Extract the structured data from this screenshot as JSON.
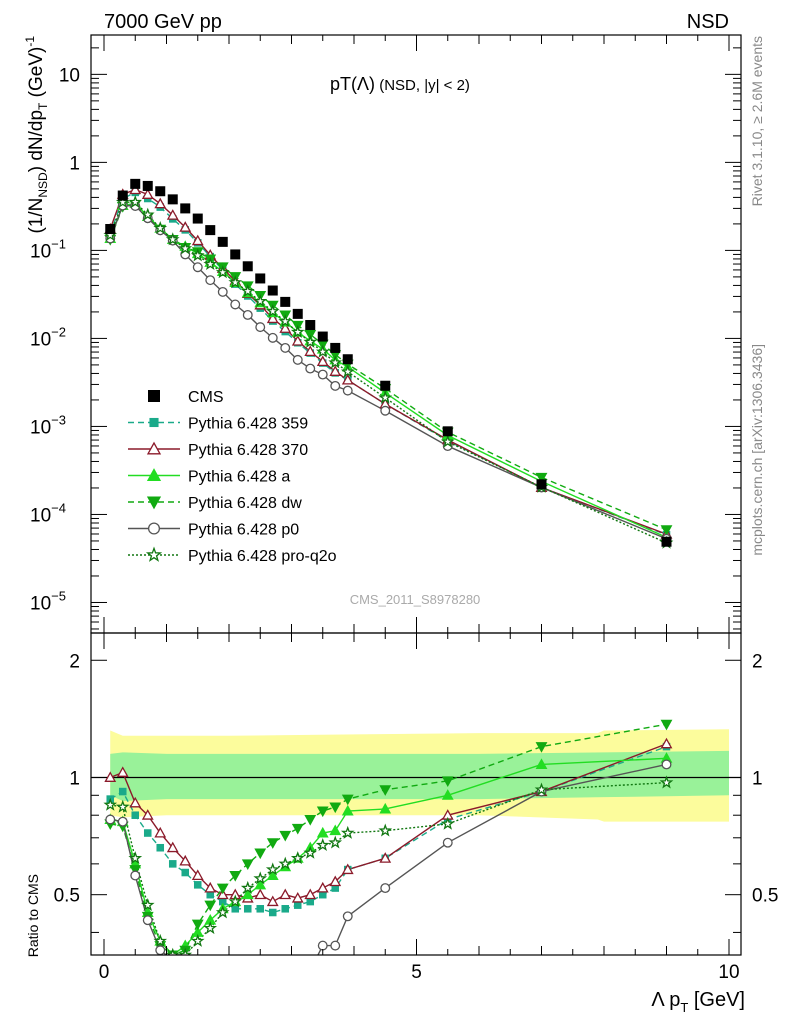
{
  "header": {
    "left": "7000 GeV pp",
    "right": "NSD"
  },
  "side_labels": {
    "top": "Rivet 3.1.10, ≥ 2.6M events",
    "bottom": "mcplots.cern.ch [arXiv:1306.3436]"
  },
  "main_panel": {
    "title": {
      "main": "pT(Λ)",
      "sub": " (NSD, |y| < 2)"
    },
    "ylabel": "(1/N_NSD) dN/dp_T (GeV)^-1",
    "watermark": "CMS_2011_S8978280",
    "y_ticks": [
      {
        "value": 10,
        "base": "10",
        "exp": ""
      },
      {
        "value": 1,
        "base": "1",
        "exp": ""
      },
      {
        "value": 0.1,
        "base": "10",
        "exp": "−1"
      },
      {
        "value": 0.01,
        "base": "10",
        "exp": "−2"
      },
      {
        "value": 0.001,
        "base": "10",
        "exp": "−3"
      },
      {
        "value": 0.0001,
        "base": "10",
        "exp": "−4"
      },
      {
        "value": 1e-05,
        "base": "10",
        "exp": "−5"
      }
    ]
  },
  "ratio_panel": {
    "ylabel": "Ratio to CMS",
    "y_ticks": [
      {
        "value": 0.5,
        "label": "0.5"
      },
      {
        "value": 1,
        "label": "1"
      },
      {
        "value": 2,
        "label": "2"
      }
    ]
  },
  "x_axis": {
    "label": "Λ p_T [GeV]",
    "ticks": [
      {
        "value": 0,
        "label": "0"
      },
      {
        "value": 5,
        "label": "5"
      },
      {
        "value": 10,
        "label": "10"
      }
    ]
  },
  "legend": [
    {
      "key": "cms",
      "label": "CMS"
    },
    {
      "key": "s359",
      "label": "Pythia 6.428 359"
    },
    {
      "key": "s370",
      "label": "Pythia 6.428 370"
    },
    {
      "key": "sa",
      "label": "Pythia 6.428 a"
    },
    {
      "key": "sdw",
      "label": "Pythia 6.428 dw"
    },
    {
      "key": "sp0",
      "label": "Pythia 6.428 p0"
    },
    {
      "key": "sproq2o",
      "label": "Pythia 6.428 pro-q2o"
    }
  ],
  "chart_data": {
    "type": "line",
    "xlim": [
      0,
      10
    ],
    "ylim_main": [
      4.5e-06,
      28
    ],
    "y_scale_main": "log",
    "ylim_ratio": [
      0.35,
      2.35
    ],
    "y_scale_ratio": "log",
    "legend_position": "left",
    "x": [
      0.1,
      0.3,
      0.5,
      0.7,
      0.9,
      1.1,
      1.3,
      1.5,
      1.7,
      1.9,
      2.1,
      2.3,
      2.5,
      2.7,
      2.9,
      3.1,
      3.3,
      3.5,
      3.7,
      3.9,
      4.5,
      5.5,
      7.0,
      9.0
    ],
    "cms": [
      0.175,
      0.42,
      0.57,
      0.54,
      0.47,
      0.38,
      0.3,
      0.23,
      0.17,
      0.125,
      0.09,
      0.066,
      0.048,
      0.035,
      0.026,
      0.019,
      0.0142,
      0.0105,
      0.0078,
      0.0058,
      0.0029,
      0.00088,
      0.00022,
      4.9e-05
    ],
    "bands": {
      "stat_ratio": [
        [
          0.1,
          0.9,
          1.15
        ],
        [
          0.3,
          0.87,
          1.16
        ],
        [
          1.0,
          0.88,
          1.15
        ],
        [
          2.0,
          0.88,
          1.15
        ],
        [
          4.0,
          0.88,
          1.15
        ],
        [
          6.0,
          0.88,
          1.15
        ],
        [
          8.0,
          0.89,
          1.16
        ],
        [
          10.0,
          0.9,
          1.17
        ]
      ],
      "syst_ratio": [
        [
          0.1,
          0.8,
          1.32
        ],
        [
          0.3,
          0.79,
          1.28
        ],
        [
          1.0,
          0.8,
          1.28
        ],
        [
          2.0,
          0.8,
          1.28
        ],
        [
          4.0,
          0.8,
          1.29
        ],
        [
          6.0,
          0.8,
          1.3
        ],
        [
          7.9,
          0.78,
          1.3
        ],
        [
          8.0,
          0.77,
          1.32
        ],
        [
          10.0,
          0.77,
          1.33
        ]
      ]
    },
    "series": [
      {
        "key": "s359",
        "name": "Pythia 6.428 359",
        "color": "#1aaa8a",
        "dash": "6,4",
        "marker": "square-filled",
        "ratio": [
          0.88,
          0.92,
          0.8,
          0.72,
          0.66,
          0.6,
          0.57,
          0.53,
          0.5,
          0.48,
          0.46,
          0.46,
          0.46,
          0.45,
          0.46,
          0.47,
          0.48,
          0.5,
          0.52,
          0.58,
          0.62,
          0.78,
          0.92,
          1.2
        ]
      },
      {
        "key": "s370",
        "name": "Pythia 6.428 370",
        "color": "#8b1a2a",
        "dash": "",
        "marker": "triangle-open",
        "ratio": [
          1.0,
          1.03,
          0.86,
          0.8,
          0.72,
          0.66,
          0.61,
          0.56,
          0.52,
          0.5,
          0.5,
          0.49,
          0.5,
          0.48,
          0.5,
          0.49,
          0.5,
          0.52,
          0.54,
          0.58,
          0.62,
          0.8,
          0.92,
          1.22
        ]
      },
      {
        "key": "sa",
        "name": "Pythia 6.428 a",
        "color": "#22dd22",
        "dash": "",
        "marker": "triangle-filled",
        "ratio": [
          0.78,
          0.77,
          0.6,
          0.45,
          0.38,
          0.35,
          0.37,
          0.4,
          0.43,
          0.46,
          0.48,
          0.5,
          0.53,
          0.56,
          0.59,
          0.62,
          0.66,
          0.72,
          0.73,
          0.82,
          0.83,
          0.9,
          1.08,
          1.12
        ]
      },
      {
        "key": "sdw",
        "name": "Pythia 6.428 dw",
        "color": "#11aa11",
        "dash": "6,4",
        "marker": "triangle-down-filled",
        "ratio": [
          0.76,
          0.75,
          0.58,
          0.44,
          0.37,
          0.35,
          0.36,
          0.42,
          0.47,
          0.52,
          0.56,
          0.6,
          0.64,
          0.68,
          0.71,
          0.74,
          0.78,
          0.82,
          0.84,
          0.88,
          0.93,
          0.98,
          1.2,
          1.37
        ]
      },
      {
        "key": "sp0",
        "name": "Pythia 6.428 p0",
        "color": "#555555",
        "dash": "",
        "marker": "circle-open",
        "ratio": [
          0.78,
          0.77,
          0.56,
          0.43,
          0.36,
          0.34,
          0.3,
          0.28,
          0.27,
          0.27,
          0.27,
          0.28,
          0.28,
          0.29,
          0.3,
          0.3,
          0.32,
          0.37,
          0.37,
          0.44,
          0.52,
          0.68,
          0.92,
          1.08
        ]
      },
      {
        "key": "sproq2o",
        "name": "Pythia 6.428 pro-q2o",
        "color": "#117711",
        "dash": "2,2",
        "marker": "star-open",
        "ratio": [
          0.85,
          0.84,
          0.62,
          0.47,
          0.38,
          0.35,
          0.35,
          0.38,
          0.41,
          0.45,
          0.48,
          0.52,
          0.55,
          0.58,
          0.6,
          0.62,
          0.64,
          0.67,
          0.68,
          0.72,
          0.73,
          0.76,
          0.93,
          0.97
        ]
      }
    ]
  }
}
